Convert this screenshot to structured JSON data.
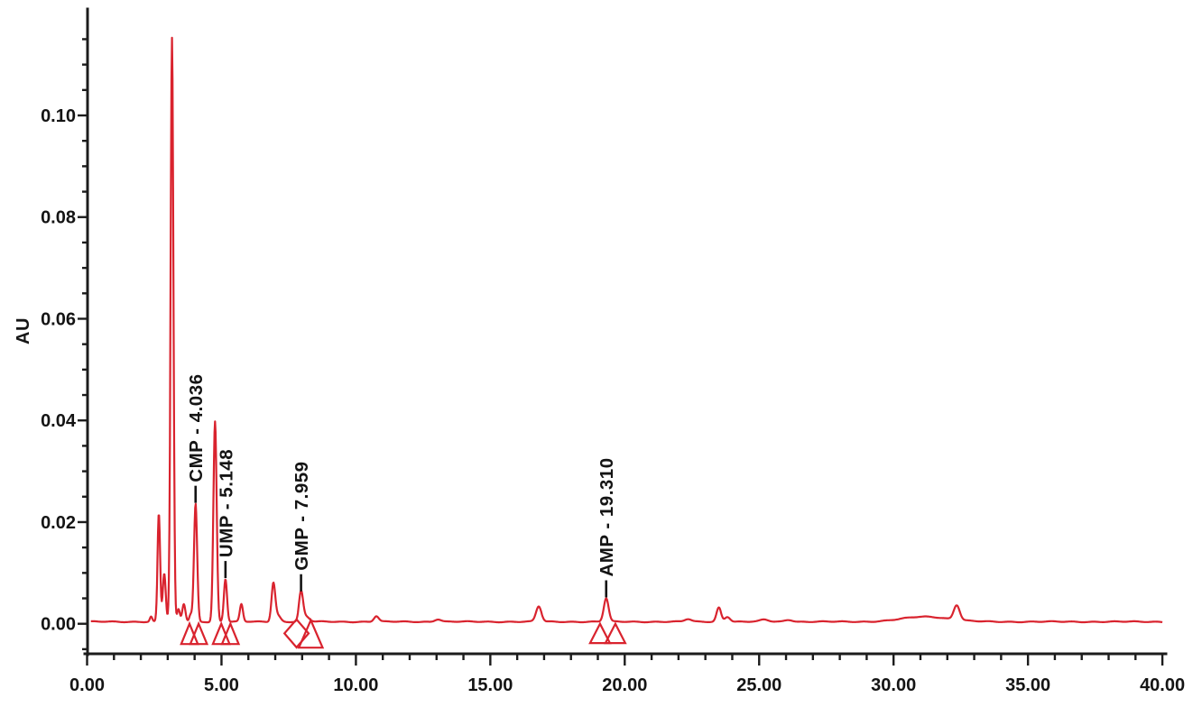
{
  "window": {
    "description": "HPLC chromatogram trace with labeled nucleotide peaks"
  },
  "chart_data": {
    "type": "line",
    "title": "",
    "xlabel": "",
    "ylabel": "AU",
    "xlim": [
      0,
      40
    ],
    "ylim": [
      -0.0059,
      0.121
    ],
    "grid": false,
    "legend": "none",
    "x_major_ticks": [
      0,
      5,
      10,
      15,
      20,
      25,
      30,
      35,
      40
    ],
    "x_major_labels": [
      "0.00",
      "5.00",
      "10.00",
      "15.00",
      "20.00",
      "25.00",
      "30.00",
      "35.00",
      "40.00"
    ],
    "x_minor_step": 1,
    "y_major_ticks": [
      0.0,
      0.02,
      0.04,
      0.06,
      0.08,
      0.1
    ],
    "y_major_labels": [
      "0.00",
      "0.02",
      "0.04",
      "0.06",
      "0.08",
      "0.10"
    ],
    "y_minor_step": 0.005,
    "y_minor_min": -0.005,
    "y_minor_max": 0.115,
    "curve_color": "#d9232e",
    "marker_color": "#d9232e",
    "axis_color": "#1c1c1c",
    "label_color": "#141414",
    "baseline_au": 0.0004,
    "peaks": [
      {
        "t": 2.38,
        "h": 0.001,
        "w": 0.045
      },
      {
        "t": 2.67,
        "h": 0.0213,
        "w": 0.048
      },
      {
        "t": 2.87,
        "h": 0.0095,
        "w": 0.055
      },
      {
        "t": 3.16,
        "h": 0.1148,
        "w": 0.052
      },
      {
        "t": 3.4,
        "h": 0.0024,
        "w": 0.05
      },
      {
        "t": 3.6,
        "h": 0.0035,
        "w": 0.06
      },
      {
        "t": 3.85,
        "h": 0.0014,
        "w": 0.05
      },
      {
        "t": 4.036,
        "h": 0.0232,
        "w": 0.06
      },
      {
        "t": 4.76,
        "h": 0.0394,
        "w": 0.06
      },
      {
        "t": 5.148,
        "h": 0.0084,
        "w": 0.058
      },
      {
        "t": 5.74,
        "h": 0.0034,
        "w": 0.058
      },
      {
        "t": 6.93,
        "h": 0.0075,
        "w": 0.07
      },
      {
        "t": 7.1,
        "h": 0.0012,
        "w": 0.1
      },
      {
        "t": 7.959,
        "h": 0.0058,
        "w": 0.075
      },
      {
        "t": 8.15,
        "h": 0.001,
        "w": 0.12
      },
      {
        "t": 10.76,
        "h": 0.0011,
        "w": 0.09
      },
      {
        "t": 13.05,
        "h": 0.0005,
        "w": 0.12
      },
      {
        "t": 16.8,
        "h": 0.003,
        "w": 0.1
      },
      {
        "t": 19.31,
        "h": 0.0046,
        "w": 0.09
      },
      {
        "t": 22.35,
        "h": 0.0005,
        "w": 0.12
      },
      {
        "t": 23.5,
        "h": 0.0028,
        "w": 0.085
      },
      {
        "t": 23.82,
        "h": 0.001,
        "w": 0.1
      },
      {
        "t": 25.2,
        "h": 0.0004,
        "w": 0.15
      },
      {
        "t": 26.1,
        "h": 0.0004,
        "w": 0.15
      },
      {
        "t": 31.2,
        "h": 0.001,
        "w": 0.85
      },
      {
        "t": 32.35,
        "h": 0.0029,
        "w": 0.11
      }
    ],
    "labeled_peaks": [
      {
        "compound": "CMP",
        "rt": "4.036",
        "label": "CMP - 4.036",
        "apex_au": 0.0236
      },
      {
        "compound": "UMP",
        "rt": "5.148",
        "label": "UMP - 5.148",
        "apex_au": 0.0088
      },
      {
        "compound": "GMP",
        "rt": "7.959",
        "label": "GMP - 7.959",
        "apex_au": 0.0062
      },
      {
        "compound": "AMP",
        "rt": "19.310",
        "label": "AMP - 19.310",
        "apex_au": 0.005
      }
    ],
    "integration_markers": [
      {
        "type": "triangle",
        "t": 3.81,
        "hw": 0.31,
        "top_au": 0.0,
        "bot_au": -0.004
      },
      {
        "type": "triangle",
        "t": 4.15,
        "hw": 0.31,
        "top_au": 0.0,
        "bot_au": -0.004
      },
      {
        "type": "triangle",
        "t": 4.99,
        "hw": 0.31,
        "top_au": 0.0,
        "bot_au": -0.004
      },
      {
        "type": "triangle",
        "t": 5.33,
        "hw": 0.31,
        "top_au": 0.0,
        "bot_au": -0.004
      },
      {
        "type": "diamond",
        "t": 7.79,
        "hw": 0.45,
        "center_au": -0.0019,
        "hh_au": 0.00275
      },
      {
        "type": "triangle",
        "t": 8.32,
        "hw": 0.44,
        "top_au": 0.0007,
        "bot_au": -0.0047
      },
      {
        "type": "triangle",
        "t": 19.08,
        "hw": 0.37,
        "top_au": 0.0,
        "bot_au": -0.0038
      },
      {
        "type": "triangle",
        "t": 19.65,
        "hw": 0.37,
        "top_au": 0.0,
        "bot_au": -0.0038
      }
    ]
  }
}
